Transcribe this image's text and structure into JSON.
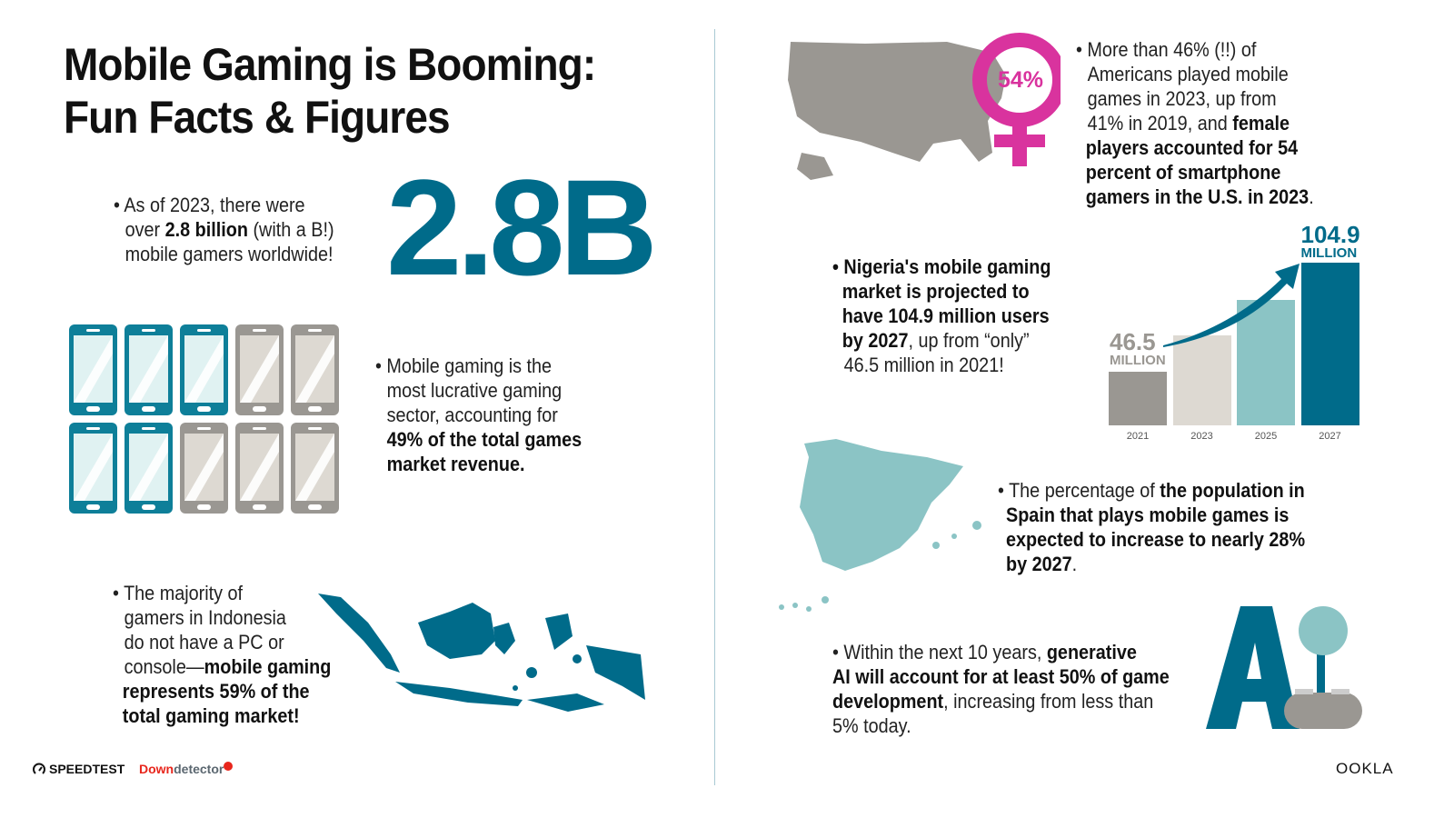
{
  "title": [
    "Mobile Gaming is Booming:",
    "Fun Facts & Figures"
  ],
  "gamers": {
    "pre": "• As of 2023, there were",
    "over ": "over ",
    "bold": "2.8 billion",
    "post": " (with a B!)",
    "line3": "mobile gamers worldwide!",
    "big": "2.8B"
  },
  "lucrative": {
    "l1": "• Mobile gaming is the",
    "l2": "most lucrative gaming",
    "l3": "sector, accounting for",
    "b1": "49% of the total games",
    "b2": "market revenue."
  },
  "phones": {
    "filled_teal": 5,
    "total": 10,
    "colors": {
      "teal": "#0e7f99",
      "gray": "#9a9792"
    }
  },
  "indonesia": {
    "l1": "• The majority of",
    "l2": "gamers in Indonesia",
    "l3": "do not have a PC or",
    "l4": "console—",
    "b1": "mobile gaming",
    "b2": "represents 59% of the",
    "b3": "total gaming market!"
  },
  "usa": {
    "badge": "54%",
    "l1": "• More than 46% (!!) of",
    "l2": "Americans played mobile",
    "l3": "games in 2023, up from",
    "l4": "41% in 2019, and ",
    "b1": "female",
    "b2": "players accounted for 54",
    "b3": "percent of smartphone",
    "b4": "gamers in the U.S. in 2023",
    "end": "."
  },
  "nigeria": {
    "b1": "• Nigeria's mobile gaming",
    "b2": "market is projected to",
    "b3": "have 104.9 million users",
    "b4": "by 2027",
    ",": ", up from “only”",
    "l5": "46.5 million in 2021!"
  },
  "chart_data": {
    "type": "bar",
    "categories": [
      "2021",
      "2023",
      "2025",
      "2027"
    ],
    "values": [
      46.5,
      66,
      85,
      104.9
    ],
    "colors": [
      "#9a9792",
      "#ddd9d2",
      "#8bc4c5",
      "#006b8a"
    ],
    "labels": [
      {
        "value": "46.5",
        "unit": "MILLION"
      },
      null,
      null,
      {
        "value": "104.9",
        "unit": "MILLION"
      }
    ],
    "ylim": [
      18,
      110
    ],
    "grid": false
  },
  "spain": {
    "l1": "• The percentage of ",
    "b1": "the population in",
    "b2": "Spain that plays mobile games is",
    "b3": "expected to increase to nearly 28%",
    "b4": "by 2027",
    "end": "."
  },
  "ai": {
    "l1": "• Within the next 10 years, ",
    "b1": "generative",
    "b2": "AI will account for at least 50% of game",
    "b3": "development",
    ",": ", increasing from less than",
    "l4": "5% today.",
    "logo": "AI"
  },
  "footer": {
    "speedtest": "SPEEDTEST",
    "down": "Down",
    "detector": "detector",
    "ookla": "OOKLA"
  },
  "colors": {
    "teal": "#006b8a",
    "lightteal": "#8bc4c5",
    "gray": "#9a9792",
    "magenta": "#d9339e",
    "red": "#e8261c"
  }
}
